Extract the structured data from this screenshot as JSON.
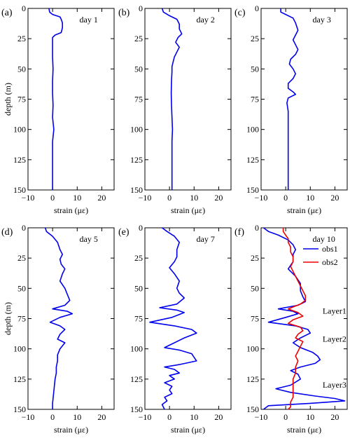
{
  "chart_data": [
    {
      "type": "line",
      "panel_label": "(a)",
      "day_label": "day 1",
      "xlabel": "strain (με)",
      "ylabel": "depth (m)",
      "xlim": [
        -10,
        25
      ],
      "ylim": [
        0,
        150
      ],
      "y_inverted": true,
      "xticks": [
        -10,
        0,
        10,
        20
      ],
      "yticks": [
        0,
        25,
        50,
        75,
        100,
        125,
        150
      ],
      "series": [
        {
          "color": "#0000ee",
          "points": [
            [
              -1.5,
              0
            ],
            [
              -1.2,
              3
            ],
            [
              0,
              5
            ],
            [
              3,
              7
            ],
            [
              3.5,
              9
            ],
            [
              4,
              12
            ],
            [
              4,
              16
            ],
            [
              3.5,
              20
            ],
            [
              1,
              22
            ],
            [
              0,
              24
            ],
            [
              0,
              30
            ],
            [
              0,
              40
            ],
            [
              0.2,
              50
            ],
            [
              0,
              60
            ],
            [
              0,
              70
            ],
            [
              0.2,
              80
            ],
            [
              0,
              90
            ],
            [
              0.5,
              100
            ],
            [
              0,
              110
            ],
            [
              0,
              125
            ],
            [
              0,
              140
            ],
            [
              0,
              150
            ]
          ]
        }
      ]
    },
    {
      "type": "line",
      "panel_label": "(b)",
      "day_label": "day 2",
      "xlabel": "strain (με)",
      "ylabel": "",
      "xlim": [
        -10,
        25
      ],
      "ylim": [
        0,
        150
      ],
      "y_inverted": true,
      "xticks": [
        -10,
        0,
        10,
        20
      ],
      "yticks": [
        0,
        25,
        50,
        75,
        100,
        125,
        150
      ],
      "series": [
        {
          "color": "#0000ee",
          "points": [
            [
              -3,
              0
            ],
            [
              -2.5,
              3
            ],
            [
              0,
              6
            ],
            [
              3,
              9
            ],
            [
              4,
              13
            ],
            [
              4,
              17
            ],
            [
              5,
              21
            ],
            [
              3.5,
              24
            ],
            [
              2.5,
              28
            ],
            [
              4,
              32
            ],
            [
              3,
              36
            ],
            [
              2,
              40
            ],
            [
              1.5,
              44
            ],
            [
              1,
              48
            ],
            [
              1,
              52
            ],
            [
              0.8,
              60
            ],
            [
              0.7,
              70
            ],
            [
              0.8,
              80
            ],
            [
              1,
              90
            ],
            [
              1.2,
              100
            ],
            [
              1,
              110
            ],
            [
              1,
              125
            ],
            [
              1,
              140
            ],
            [
              1,
              150
            ]
          ]
        }
      ]
    },
    {
      "type": "line",
      "panel_label": "(c)",
      "day_label": "day 3",
      "xlabel": "strain (με)",
      "ylabel": "",
      "xlim": [
        -10,
        25
      ],
      "ylim": [
        0,
        150
      ],
      "y_inverted": true,
      "xticks": [
        -10,
        0,
        10,
        20
      ],
      "yticks": [
        0,
        25,
        50,
        75,
        100,
        125,
        150
      ],
      "series": [
        {
          "color": "#0000ee",
          "points": [
            [
              -2,
              0
            ],
            [
              -2,
              3
            ],
            [
              0,
              5
            ],
            [
              3,
              8
            ],
            [
              4,
              12
            ],
            [
              5,
              18
            ],
            [
              4,
              22
            ],
            [
              3,
              26
            ],
            [
              4,
              30
            ],
            [
              5,
              34
            ],
            [
              4,
              38
            ],
            [
              2,
              42
            ],
            [
              1.5,
              46
            ],
            [
              3,
              50
            ],
            [
              4,
              54
            ],
            [
              3,
              58
            ],
            [
              1,
              62
            ],
            [
              1,
              66
            ],
            [
              3,
              69
            ],
            [
              4,
              71
            ],
            [
              1,
              74
            ],
            [
              0.5,
              78
            ],
            [
              1,
              85
            ],
            [
              1,
              100
            ],
            [
              1,
              110
            ],
            [
              1,
              125
            ],
            [
              1,
              140
            ],
            [
              1,
              150
            ]
          ]
        }
      ]
    },
    {
      "type": "line",
      "panel_label": "(d)",
      "day_label": "day 5",
      "xlabel": "strain (με)",
      "ylabel": "depth (m)",
      "xlim": [
        -10,
        25
      ],
      "ylim": [
        0,
        150
      ],
      "y_inverted": true,
      "xticks": [
        -10,
        0,
        10,
        20
      ],
      "yticks": [
        0,
        25,
        50,
        75,
        100,
        125,
        150
      ],
      "series": [
        {
          "color": "#0000ee",
          "points": [
            [
              -3,
              0
            ],
            [
              -2.5,
              3
            ],
            [
              0,
              7
            ],
            [
              2,
              12
            ],
            [
              3,
              18
            ],
            [
              4,
              22
            ],
            [
              3,
              26
            ],
            [
              3.5,
              30
            ],
            [
              5,
              34
            ],
            [
              4,
              38
            ],
            [
              3,
              44
            ],
            [
              5,
              50
            ],
            [
              6,
              55
            ],
            [
              7,
              60
            ],
            [
              5,
              64
            ],
            [
              0,
              67
            ],
            [
              6,
              69
            ],
            [
              8,
              71
            ],
            [
              3,
              74
            ],
            [
              -1,
              78
            ],
            [
              3,
              81
            ],
            [
              5,
              84
            ],
            [
              3,
              88
            ],
            [
              2,
              92
            ],
            [
              5,
              95
            ],
            [
              3,
              100
            ],
            [
              2,
              105
            ],
            [
              2,
              110
            ],
            [
              1.5,
              115
            ],
            [
              1.5,
              120
            ],
            [
              1,
              125
            ],
            [
              0.5,
              135
            ],
            [
              0,
              145
            ],
            [
              0,
              150
            ]
          ]
        }
      ]
    },
    {
      "type": "line",
      "panel_label": "(e)",
      "day_label": "day 7",
      "xlabel": "strain (με)",
      "ylabel": "",
      "xlim": [
        -10,
        25
      ],
      "ylim": [
        0,
        150
      ],
      "y_inverted": true,
      "xticks": [
        -10,
        0,
        10,
        20
      ],
      "yticks": [
        0,
        25,
        50,
        75,
        100,
        125,
        150
      ],
      "series": [
        {
          "color": "#0000ee",
          "points": [
            [
              -3,
              0
            ],
            [
              -1,
              3
            ],
            [
              2,
              7
            ],
            [
              4,
              12
            ],
            [
              3,
              18
            ],
            [
              3,
              24
            ],
            [
              2,
              28
            ],
            [
              0,
              33
            ],
            [
              2,
              38
            ],
            [
              4,
              44
            ],
            [
              3,
              50
            ],
            [
              4,
              54
            ],
            [
              6,
              58
            ],
            [
              3,
              63
            ],
            [
              -4,
              66
            ],
            [
              3,
              68
            ],
            [
              6,
              70
            ],
            [
              1,
              74
            ],
            [
              -8,
              78
            ],
            [
              2,
              81
            ],
            [
              9,
              84
            ],
            [
              11,
              87
            ],
            [
              6,
              91
            ],
            [
              2,
              95
            ],
            [
              -2,
              99
            ],
            [
              4,
              101
            ],
            [
              9,
              104
            ],
            [
              10,
              107
            ],
            [
              11,
              110
            ],
            [
              4,
              113
            ],
            [
              -2,
              115
            ],
            [
              2,
              117
            ],
            [
              4,
              120
            ],
            [
              0,
              122
            ],
            [
              2,
              125
            ],
            [
              -2,
              128
            ],
            [
              1,
              131
            ],
            [
              0,
              134
            ],
            [
              1,
              137
            ],
            [
              -2,
              140
            ],
            [
              -1,
              143
            ],
            [
              -3,
              146
            ],
            [
              -2,
              150
            ]
          ]
        }
      ]
    },
    {
      "type": "line",
      "panel_label": "(f)",
      "day_label": "day 10",
      "xlabel": "strain (με)",
      "ylabel": "",
      "xlim": [
        -10,
        25
      ],
      "ylim": [
        0,
        150
      ],
      "y_inverted": true,
      "xticks": [
        -10,
        0,
        10,
        20
      ],
      "yticks": [
        0,
        25,
        50,
        75,
        100,
        125,
        150
      ],
      "legend": "top-right",
      "annotations": [
        {
          "text": "Layer1",
          "x": 15,
          "y": 71
        },
        {
          "text": "Layer2",
          "x": 15,
          "y": 94
        },
        {
          "text": "Layer3",
          "x": 15,
          "y": 132
        }
      ],
      "series": [
        {
          "name": "obs1",
          "color": "#0000ee",
          "points": [
            [
              -9,
              0
            ],
            [
              -7,
              3
            ],
            [
              -3,
              6
            ],
            [
              1,
              10
            ],
            [
              3,
              14
            ],
            [
              4,
              18
            ],
            [
              3,
              22
            ],
            [
              3,
              28
            ],
            [
              1,
              34
            ],
            [
              4,
              40
            ],
            [
              6,
              46
            ],
            [
              6,
              52
            ],
            [
              7,
              57
            ],
            [
              8,
              61
            ],
            [
              5,
              64
            ],
            [
              -3,
              67
            ],
            [
              3,
              69
            ],
            [
              5,
              71
            ],
            [
              0,
              74
            ],
            [
              -7,
              78
            ],
            [
              4,
              81
            ],
            [
              9,
              84
            ],
            [
              10,
              87
            ],
            [
              6,
              91
            ],
            [
              3,
              95
            ],
            [
              6,
              99
            ],
            [
              11,
              103
            ],
            [
              13,
              106
            ],
            [
              14,
              109
            ],
            [
              12,
              112
            ],
            [
              6,
              115
            ],
            [
              2,
              118
            ],
            [
              5,
              121
            ],
            [
              6,
              125
            ],
            [
              2,
              130
            ],
            [
              -4,
              133
            ],
            [
              2,
              136
            ],
            [
              12,
              139
            ],
            [
              20,
              141
            ],
            [
              24,
              143
            ],
            [
              10,
              145
            ],
            [
              -7,
              147
            ],
            [
              -9,
              150
            ]
          ]
        },
        {
          "name": "obs2",
          "color": "#ee0000",
          "points": [
            [
              -1,
              0
            ],
            [
              -1,
              3
            ],
            [
              0,
              6
            ],
            [
              1,
              9
            ],
            [
              1,
              12
            ],
            [
              2,
              16
            ],
            [
              2,
              20
            ],
            [
              3,
              24
            ],
            [
              3,
              28
            ],
            [
              2,
              32
            ],
            [
              3,
              36
            ],
            [
              4,
              40
            ],
            [
              5,
              44
            ],
            [
              6,
              48
            ],
            [
              7,
              52
            ],
            [
              8,
              56
            ],
            [
              8,
              60
            ],
            [
              6,
              63
            ],
            [
              1,
              67
            ],
            [
              5,
              70
            ],
            [
              7,
              73
            ],
            [
              3,
              76
            ],
            [
              1,
              79
            ],
            [
              6,
              82
            ],
            [
              7,
              85
            ],
            [
              5,
              88
            ],
            [
              4,
              91
            ],
            [
              7,
              94
            ],
            [
              6,
              98
            ],
            [
              5,
              102
            ],
            [
              4,
              106
            ],
            [
              5,
              110
            ],
            [
              4,
              115
            ],
            [
              4,
              120
            ],
            [
              3,
              125
            ],
            [
              3,
              130
            ],
            [
              3,
              135
            ],
            [
              3,
              140
            ],
            [
              2,
              144
            ],
            [
              2,
              148
            ],
            [
              1,
              150
            ]
          ]
        }
      ]
    }
  ]
}
